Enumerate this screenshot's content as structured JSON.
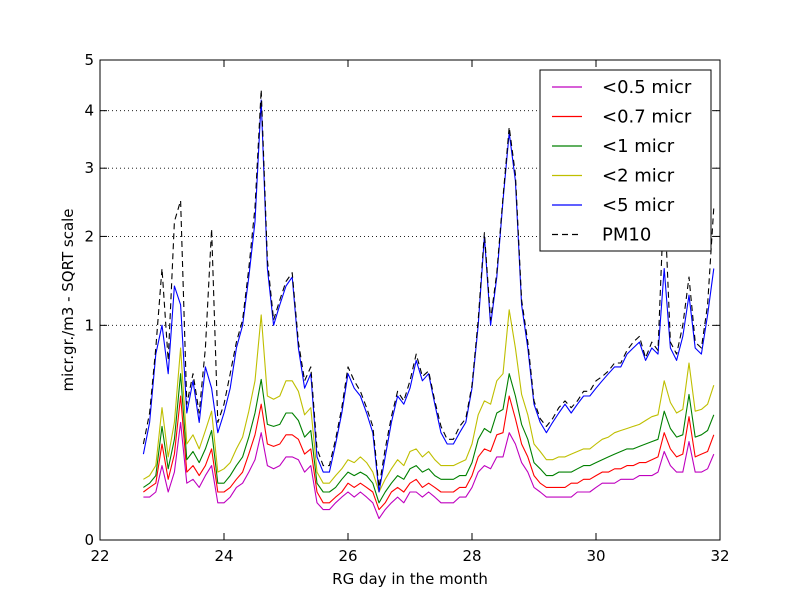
{
  "chart_data": {
    "type": "line",
    "xlabel": "RG day in the month",
    "ylabel": "micr.gr./m3 - SQRT scale",
    "y_scale": "sqrt",
    "xlim": [
      22,
      32
    ],
    "ylim": [
      0,
      5
    ],
    "x_ticks": [
      "22",
      "24",
      "26",
      "28",
      "30",
      "32"
    ],
    "y_ticks": [
      "0",
      "1",
      "2",
      "3",
      "4",
      "5"
    ],
    "grid": "horizontal dotted",
    "legend_position": "top-right",
    "x": [
      22.7,
      22.8,
      22.9,
      23.0,
      23.1,
      23.2,
      23.3,
      23.4,
      23.5,
      23.6,
      23.7,
      23.8,
      23.9,
      24.0,
      24.1,
      24.2,
      24.3,
      24.4,
      24.5,
      24.6,
      24.7,
      24.8,
      24.9,
      25.0,
      25.1,
      25.2,
      25.3,
      25.4,
      25.5,
      25.6,
      25.7,
      25.8,
      25.9,
      26.0,
      26.1,
      26.2,
      26.3,
      26.4,
      26.5,
      26.6,
      26.7,
      26.8,
      26.9,
      27.0,
      27.1,
      27.2,
      27.3,
      27.4,
      27.5,
      27.6,
      27.7,
      27.8,
      27.9,
      28.0,
      28.1,
      28.2,
      28.3,
      28.4,
      28.5,
      28.6,
      28.7,
      28.8,
      28.9,
      29.0,
      29.1,
      29.2,
      29.3,
      29.4,
      29.5,
      29.6,
      29.7,
      29.8,
      29.9,
      30.0,
      30.1,
      30.2,
      30.3,
      30.4,
      30.5,
      30.6,
      30.7,
      30.8,
      30.9,
      31.0,
      31.1,
      31.2,
      31.3,
      31.4,
      31.5,
      31.6,
      31.7,
      31.8,
      31.9
    ],
    "series": [
      {
        "name": "<0.5 micr",
        "color": "#bf00bf",
        "dash": "solid",
        "values": [
          0.04,
          0.04,
          0.05,
          0.12,
          0.05,
          0.1,
          0.3,
          0.07,
          0.08,
          0.06,
          0.09,
          0.12,
          0.03,
          0.03,
          0.04,
          0.06,
          0.07,
          0.1,
          0.14,
          0.25,
          0.12,
          0.11,
          0.12,
          0.15,
          0.15,
          0.14,
          0.1,
          0.12,
          0.03,
          0.02,
          0.02,
          0.03,
          0.04,
          0.05,
          0.04,
          0.05,
          0.04,
          0.03,
          0.01,
          0.02,
          0.03,
          0.04,
          0.03,
          0.05,
          0.05,
          0.04,
          0.05,
          0.04,
          0.03,
          0.03,
          0.03,
          0.04,
          0.04,
          0.06,
          0.1,
          0.12,
          0.11,
          0.15,
          0.15,
          0.25,
          0.2,
          0.13,
          0.1,
          0.06,
          0.05,
          0.04,
          0.04,
          0.04,
          0.04,
          0.04,
          0.05,
          0.05,
          0.05,
          0.06,
          0.07,
          0.07,
          0.07,
          0.08,
          0.08,
          0.08,
          0.09,
          0.09,
          0.09,
          0.1,
          0.17,
          0.12,
          0.1,
          0.1,
          0.21,
          0.1,
          0.1,
          0.11,
          0.16
        ]
      },
      {
        "name": "<0.7 micr",
        "color": "#ff0000",
        "dash": "solid",
        "values": [
          0.05,
          0.06,
          0.07,
          0.2,
          0.08,
          0.16,
          0.45,
          0.1,
          0.12,
          0.09,
          0.12,
          0.18,
          0.05,
          0.05,
          0.06,
          0.08,
          0.1,
          0.16,
          0.24,
          0.4,
          0.2,
          0.19,
          0.2,
          0.24,
          0.24,
          0.22,
          0.16,
          0.18,
          0.05,
          0.03,
          0.03,
          0.04,
          0.05,
          0.07,
          0.06,
          0.07,
          0.06,
          0.05,
          0.02,
          0.03,
          0.05,
          0.06,
          0.05,
          0.07,
          0.08,
          0.06,
          0.07,
          0.06,
          0.05,
          0.05,
          0.05,
          0.06,
          0.06,
          0.09,
          0.15,
          0.18,
          0.17,
          0.24,
          0.25,
          0.45,
          0.32,
          0.2,
          0.15,
          0.09,
          0.07,
          0.06,
          0.06,
          0.06,
          0.06,
          0.07,
          0.07,
          0.08,
          0.08,
          0.09,
          0.1,
          0.1,
          0.11,
          0.11,
          0.12,
          0.12,
          0.13,
          0.13,
          0.14,
          0.15,
          0.25,
          0.18,
          0.15,
          0.16,
          0.33,
          0.15,
          0.16,
          0.17,
          0.24
        ]
      },
      {
        "name": "<1 micr",
        "color": "#008000",
        "dash": "solid",
        "values": [
          0.06,
          0.07,
          0.09,
          0.28,
          0.11,
          0.22,
          0.6,
          0.14,
          0.17,
          0.13,
          0.18,
          0.26,
          0.07,
          0.07,
          0.09,
          0.12,
          0.15,
          0.23,
          0.35,
          0.56,
          0.29,
          0.28,
          0.29,
          0.35,
          0.35,
          0.31,
          0.23,
          0.26,
          0.07,
          0.05,
          0.05,
          0.06,
          0.08,
          0.1,
          0.09,
          0.1,
          0.09,
          0.07,
          0.03,
          0.05,
          0.07,
          0.09,
          0.08,
          0.11,
          0.12,
          0.1,
          0.11,
          0.09,
          0.08,
          0.08,
          0.08,
          0.09,
          0.09,
          0.13,
          0.22,
          0.27,
          0.25,
          0.35,
          0.37,
          0.6,
          0.45,
          0.29,
          0.22,
          0.13,
          0.11,
          0.09,
          0.09,
          0.1,
          0.1,
          0.1,
          0.11,
          0.12,
          0.12,
          0.13,
          0.14,
          0.15,
          0.16,
          0.17,
          0.18,
          0.18,
          0.19,
          0.2,
          0.21,
          0.22,
          0.36,
          0.27,
          0.23,
          0.24,
          0.46,
          0.23,
          0.24,
          0.26,
          0.34
        ]
      },
      {
        "name": "<2 micr",
        "color": "#bfbf00",
        "dash": "solid",
        "values": [
          0.08,
          0.09,
          0.12,
          0.38,
          0.15,
          0.3,
          0.8,
          0.2,
          0.24,
          0.18,
          0.26,
          0.36,
          0.1,
          0.11,
          0.13,
          0.18,
          0.23,
          0.36,
          0.55,
          1.1,
          0.45,
          0.43,
          0.45,
          0.55,
          0.55,
          0.48,
          0.34,
          0.38,
          0.1,
          0.07,
          0.07,
          0.09,
          0.11,
          0.14,
          0.13,
          0.15,
          0.13,
          0.1,
          0.05,
          0.08,
          0.11,
          0.14,
          0.12,
          0.17,
          0.18,
          0.15,
          0.17,
          0.14,
          0.12,
          0.12,
          0.12,
          0.13,
          0.14,
          0.2,
          0.34,
          0.42,
          0.4,
          0.55,
          0.6,
          1.15,
          0.8,
          0.46,
          0.34,
          0.2,
          0.17,
          0.14,
          0.14,
          0.15,
          0.15,
          0.16,
          0.17,
          0.18,
          0.18,
          0.2,
          0.22,
          0.23,
          0.25,
          0.26,
          0.27,
          0.28,
          0.29,
          0.31,
          0.33,
          0.34,
          0.55,
          0.41,
          0.35,
          0.37,
          0.68,
          0.36,
          0.37,
          0.4,
          0.52
        ]
      },
      {
        "name": "<5 micr",
        "color": "#0000ff",
        "dash": "solid",
        "values": [
          0.16,
          0.3,
          0.75,
          1.0,
          0.6,
          1.4,
          1.2,
          0.35,
          0.55,
          0.3,
          0.65,
          0.5,
          0.25,
          0.35,
          0.5,
          0.8,
          1.0,
          1.5,
          2.2,
          4.2,
          1.6,
          1.0,
          1.2,
          1.4,
          1.5,
          0.8,
          0.5,
          0.6,
          0.15,
          0.1,
          0.1,
          0.2,
          0.35,
          0.6,
          0.5,
          0.45,
          0.35,
          0.25,
          0.05,
          0.15,
          0.3,
          0.45,
          0.4,
          0.5,
          0.7,
          0.55,
          0.6,
          0.4,
          0.25,
          0.2,
          0.2,
          0.25,
          0.3,
          0.5,
          1.0,
          2.0,
          1.0,
          1.5,
          2.5,
          3.6,
          2.8,
          1.2,
          0.8,
          0.4,
          0.3,
          0.25,
          0.3,
          0.35,
          0.4,
          0.35,
          0.4,
          0.45,
          0.45,
          0.5,
          0.55,
          0.6,
          0.65,
          0.65,
          0.75,
          0.8,
          0.85,
          0.7,
          0.8,
          0.75,
          1.6,
          0.8,
          0.7,
          0.9,
          1.3,
          0.8,
          0.75,
          1.1,
          1.6
        ]
      },
      {
        "name": "PM10",
        "color": "#000000",
        "dash": "dashed",
        "values": [
          0.2,
          0.35,
          0.8,
          1.6,
          0.7,
          2.2,
          2.5,
          0.4,
          0.6,
          0.35,
          0.8,
          2.1,
          0.3,
          0.4,
          0.6,
          0.85,
          1.05,
          1.6,
          2.4,
          4.4,
          1.7,
          1.05,
          1.25,
          1.45,
          1.55,
          0.85,
          0.55,
          0.65,
          0.18,
          0.12,
          0.12,
          0.22,
          0.38,
          0.65,
          0.55,
          0.48,
          0.38,
          0.28,
          0.06,
          0.18,
          0.33,
          0.48,
          0.42,
          0.55,
          0.75,
          0.58,
          0.62,
          0.42,
          0.28,
          0.22,
          0.22,
          0.28,
          0.32,
          0.52,
          1.05,
          2.05,
          1.05,
          1.55,
          2.55,
          3.7,
          2.9,
          1.25,
          0.85,
          0.42,
          0.32,
          0.28,
          0.32,
          0.38,
          0.42,
          0.38,
          0.42,
          0.48,
          0.48,
          0.55,
          0.58,
          0.62,
          0.68,
          0.68,
          0.78,
          0.85,
          0.9,
          0.72,
          0.85,
          0.78,
          2.6,
          0.85,
          0.75,
          1.0,
          1.5,
          0.85,
          0.8,
          1.2,
          2.4
        ]
      }
    ]
  }
}
